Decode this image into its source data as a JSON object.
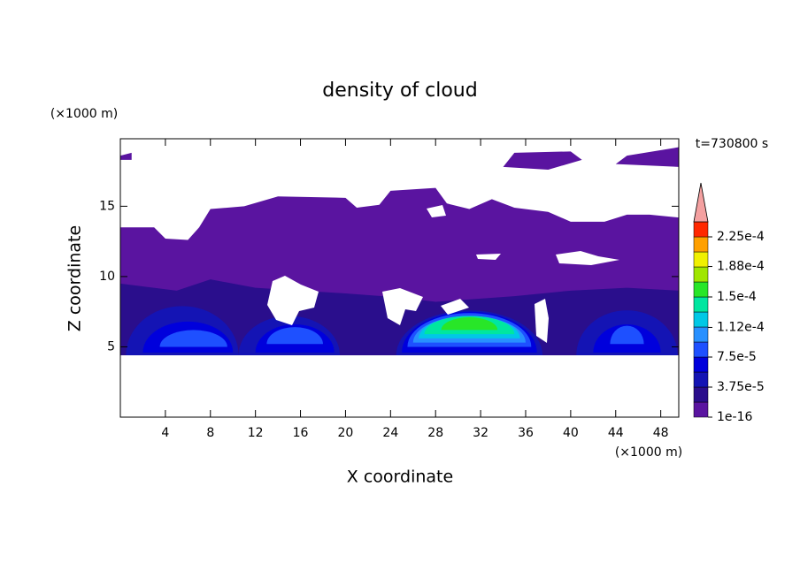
{
  "chart_data": {
    "type": "contour",
    "title": "density of cloud",
    "x_label": "X coordinate",
    "y_label": "Z coordinate",
    "x_unit": "(×1000 m)",
    "y_unit": "(×1000 m)",
    "time_label": "t=730800 s",
    "xlim": [
      0,
      49.6
    ],
    "ylim": [
      0,
      19.8
    ],
    "xticks": [
      4,
      8,
      12,
      16,
      20,
      24,
      28,
      32,
      36,
      40,
      44,
      48
    ],
    "yticks": [
      5,
      10,
      15
    ],
    "levels": [
      1e-16,
      1.875e-05,
      3.75e-05,
      5.625e-05,
      7.5e-05,
      9.375e-05,
      0.0001125,
      0.00013125,
      0.00015,
      0.00016875,
      0.0001875,
      0.00020625,
      0.000225
    ],
    "colors": [
      "#5a14a0",
      "#2a0e8c",
      "#1414b4",
      "#0000dc",
      "#1e50ff",
      "#2890ff",
      "#00c8e6",
      "#00e6a0",
      "#28e628",
      "#a0e600",
      "#f0f000",
      "#ffa000",
      "#ff2800"
    ],
    "clim": [
      1e-16,
      0.00024375
    ],
    "extend_color": "#f4a0a0",
    "colorbar_ticks": [
      {
        "value": 1e-16,
        "label": "1e-16"
      },
      {
        "value": 3.75e-05,
        "label": "3.75e-5"
      },
      {
        "value": 7.5e-05,
        "label": "7.5e-5"
      },
      {
        "value": 0.000112,
        "label": "1.12e-4"
      },
      {
        "value": 0.00015,
        "label": "1.5e-4"
      },
      {
        "value": 0.000188,
        "label": "1.88e-4"
      },
      {
        "value": 0.000225,
        "label": "2.25e-4"
      }
    ],
    "polygons": [
      {
        "level": 0,
        "x": [
          49.6,
          0,
          0,
          3,
          4,
          6,
          7,
          8,
          11,
          14,
          20,
          21,
          23,
          24,
          28,
          29,
          31,
          33,
          35,
          38,
          40,
          43,
          45,
          47,
          49.6
        ],
        "z": [
          4.4,
          4.4,
          13.5,
          13.5,
          12.7,
          12.6,
          13.5,
          14.8,
          15,
          15.7,
          15.6,
          14.9,
          15.1,
          16.1,
          16.3,
          15.2,
          14.8,
          15.5,
          14.9,
          14.6,
          13.9,
          13.9,
          14.4,
          14.4,
          14.2
        ]
      },
      {
        "level": 0,
        "x": [
          34,
          35,
          40,
          41,
          38
        ],
        "z": [
          17.8,
          18.8,
          18.9,
          18.3,
          17.6
        ]
      },
      {
        "level": 0,
        "x": [
          44,
          45,
          49.6,
          49.6
        ],
        "z": [
          18,
          18.6,
          19.2,
          17.8
        ]
      },
      {
        "level": 0,
        "x": [
          0,
          1,
          1,
          0
        ],
        "z": [
          18.6,
          18.8,
          18.3,
          18.3
        ]
      },
      {
        "level": 1,
        "x": [
          49.6,
          0,
          0,
          5,
          8,
          12,
          20,
          25,
          28,
          35,
          40,
          45,
          49.6
        ],
        "z": [
          4.4,
          4.4,
          9.5,
          9,
          9.8,
          9.2,
          8.8,
          8.5,
          8.2,
          8.6,
          9,
          9.2,
          9
        ]
      }
    ],
    "domes": [
      {
        "level": 2,
        "x": 5.5,
        "z": 4.4,
        "rx": 5,
        "rz": 3.5
      },
      {
        "level": 2,
        "x": 15,
        "z": 4.4,
        "rx": 4.5,
        "rz": 2.8
      },
      {
        "level": 2,
        "x": 31,
        "z": 4.4,
        "rx": 6.5,
        "rz": 3.2
      },
      {
        "level": 2,
        "x": 45,
        "z": 4.4,
        "rx": 4.5,
        "rz": 3.2
      },
      {
        "level": 3,
        "x": 6,
        "z": 4.6,
        "rx": 4,
        "rz": 2.2
      },
      {
        "level": 3,
        "x": 15.5,
        "z": 4.6,
        "rx": 3.5,
        "rz": 2
      },
      {
        "level": 3,
        "x": 31,
        "z": 4.6,
        "rx": 6,
        "rz": 2.9
      },
      {
        "level": 3,
        "x": 45,
        "z": 4.6,
        "rx": 3,
        "rz": 2
      },
      {
        "level": 4,
        "x": 6.5,
        "z": 5,
        "rx": 3,
        "rz": 1.2
      },
      {
        "level": 4,
        "x": 15.5,
        "z": 5.2,
        "rx": 2.5,
        "rz": 1.2
      },
      {
        "level": 4,
        "x": 31,
        "z": 5,
        "rx": 5.5,
        "rz": 2.4
      },
      {
        "level": 4,
        "x": 45,
        "z": 5.2,
        "rx": 1.5,
        "rz": 1.3
      },
      {
        "level": 5,
        "x": 31,
        "z": 5.3,
        "rx": 5,
        "rz": 1.9
      },
      {
        "level": 6,
        "x": 31,
        "z": 5.6,
        "rx": 4.5,
        "rz": 1.6
      },
      {
        "level": 7,
        "x": 31,
        "z": 5.9,
        "rx": 4,
        "rz": 1.3
      },
      {
        "level": 8,
        "x": 31,
        "z": 6.2,
        "rx": 2.5,
        "rz": 0.9
      }
    ]
  }
}
